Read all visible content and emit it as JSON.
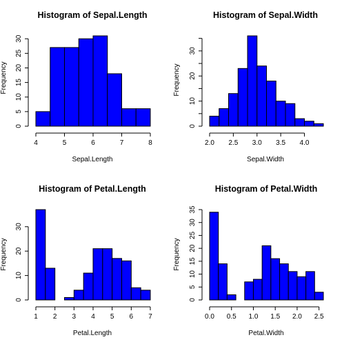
{
  "chart_data": [
    {
      "type": "bar",
      "title": "Histogram of Sepal.Length",
      "xlabel": "Sepal.Length",
      "ylabel": "Frequency",
      "bin_edges": [
        4,
        4.5,
        5,
        5.5,
        6,
        6.5,
        7,
        7.5,
        8
      ],
      "values": [
        5,
        27,
        27,
        30,
        31,
        18,
        6,
        6
      ],
      "xlim": [
        4,
        8
      ],
      "ylim": [
        0,
        31
      ],
      "xticks": [
        4,
        5,
        6,
        7,
        8
      ],
      "xtick_labels": [
        "4",
        "5",
        "6",
        "7",
        "8"
      ],
      "yticks": [
        0,
        5,
        10,
        15,
        20,
        25,
        30
      ],
      "ytick_labels": [
        "0",
        "5",
        "10",
        "15",
        "20",
        "25",
        "30"
      ],
      "bar_color": "#0000ff"
    },
    {
      "type": "bar",
      "title": "Histogram of Sepal.Width",
      "xlabel": "Sepal.Width",
      "ylabel": "Frequency",
      "bin_edges": [
        2.0,
        2.2,
        2.4,
        2.6,
        2.8,
        3.0,
        3.2,
        3.4,
        3.6,
        3.8,
        4.0,
        4.2,
        4.4
      ],
      "values": [
        4,
        7,
        13,
        23,
        36,
        24,
        18,
        10,
        9,
        3,
        2,
        1
      ],
      "xlim": [
        2.0,
        4.4
      ],
      "ylim": [
        0,
        36
      ],
      "xticks": [
        2.0,
        2.5,
        3.0,
        3.5,
        4.0
      ],
      "xtick_labels": [
        "2.0",
        "2.5",
        "3.0",
        "3.5",
        "4.0"
      ],
      "yticks": [
        0,
        5,
        10,
        15,
        20,
        25,
        30,
        35
      ],
      "ytick_labels": [
        "0",
        "",
        "10",
        "",
        "20",
        "",
        "30",
        ""
      ],
      "bar_color": "#0000ff"
    },
    {
      "type": "bar",
      "title": "Histogram of Petal.Length",
      "xlabel": "Petal.Length",
      "ylabel": "Frequency",
      "bin_edges": [
        1,
        1.5,
        2,
        2.5,
        3,
        3.5,
        4,
        4.5,
        5,
        5.5,
        6,
        6.5,
        7
      ],
      "values": [
        37,
        13,
        0,
        1,
        4,
        11,
        21,
        21,
        17,
        16,
        5,
        4
      ],
      "xlim": [
        1,
        7
      ],
      "ylim": [
        0,
        37
      ],
      "xticks": [
        1,
        2,
        3,
        4,
        5,
        6,
        7
      ],
      "xtick_labels": [
        "1",
        "2",
        "3",
        "4",
        "5",
        "6",
        "7"
      ],
      "yticks": [
        0,
        10,
        20,
        30
      ],
      "ytick_labels": [
        "0",
        "10",
        "20",
        "30"
      ],
      "bar_color": "#0000ff"
    },
    {
      "type": "bar",
      "title": "Histogram of Petal.Width",
      "xlabel": "Petal.Width",
      "ylabel": "Frequency",
      "bin_edges": [
        0,
        0.2,
        0.4,
        0.6,
        0.8,
        1.0,
        1.2,
        1.4,
        1.6,
        1.8,
        2.0,
        2.2,
        2.4,
        2.6
      ],
      "values": [
        34,
        14,
        2,
        0,
        7,
        8,
        21,
        16,
        14,
        11,
        9,
        11,
        3
      ],
      "xlim": [
        0,
        2.6
      ],
      "ylim": [
        0,
        35
      ],
      "xticks": [
        0.0,
        0.5,
        1.0,
        1.5,
        2.0,
        2.5
      ],
      "xtick_labels": [
        "0.0",
        "0.5",
        "1.0",
        "1.5",
        "2.0",
        "2.5"
      ],
      "yticks": [
        0,
        5,
        10,
        15,
        20,
        25,
        30,
        35
      ],
      "ytick_labels": [
        "0",
        "5",
        "10",
        "15",
        "20",
        "25",
        "30",
        "35"
      ],
      "bar_color": "#0000ff"
    }
  ]
}
